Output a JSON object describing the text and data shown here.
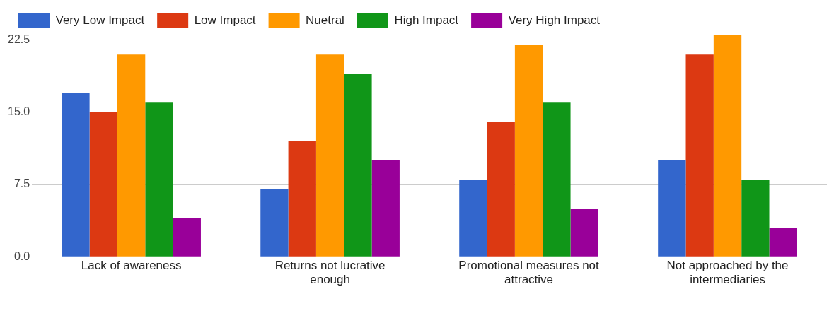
{
  "chart_data": {
    "type": "bar",
    "categories": [
      "Lack of awareness",
      "Returns not lucrative enough",
      "Promotional measures not attractive",
      "Not approached by the intermediaries"
    ],
    "series": [
      {
        "name": "Very Low Impact",
        "color": "#3366cc",
        "values": [
          17,
          7,
          8,
          10
        ]
      },
      {
        "name": "Low Impact",
        "color": "#dc3912",
        "values": [
          15,
          12,
          14,
          21
        ]
      },
      {
        "name": "Nuetral",
        "color": "#ff9900",
        "values": [
          21,
          21,
          22,
          23
        ]
      },
      {
        "name": "High Impact",
        "color": "#109618",
        "values": [
          16,
          19,
          16,
          8
        ]
      },
      {
        "name": "Very High Impact",
        "color": "#990099",
        "values": [
          4,
          10,
          5,
          3
        ]
      }
    ],
    "yticks": [
      {
        "value": 0,
        "label": "0.0"
      },
      7.5,
      {
        "value": 15,
        "label": "15.0"
      },
      22.5
    ],
    "ylim": [
      0,
      23
    ],
    "grid": "y",
    "legend": "top left"
  }
}
